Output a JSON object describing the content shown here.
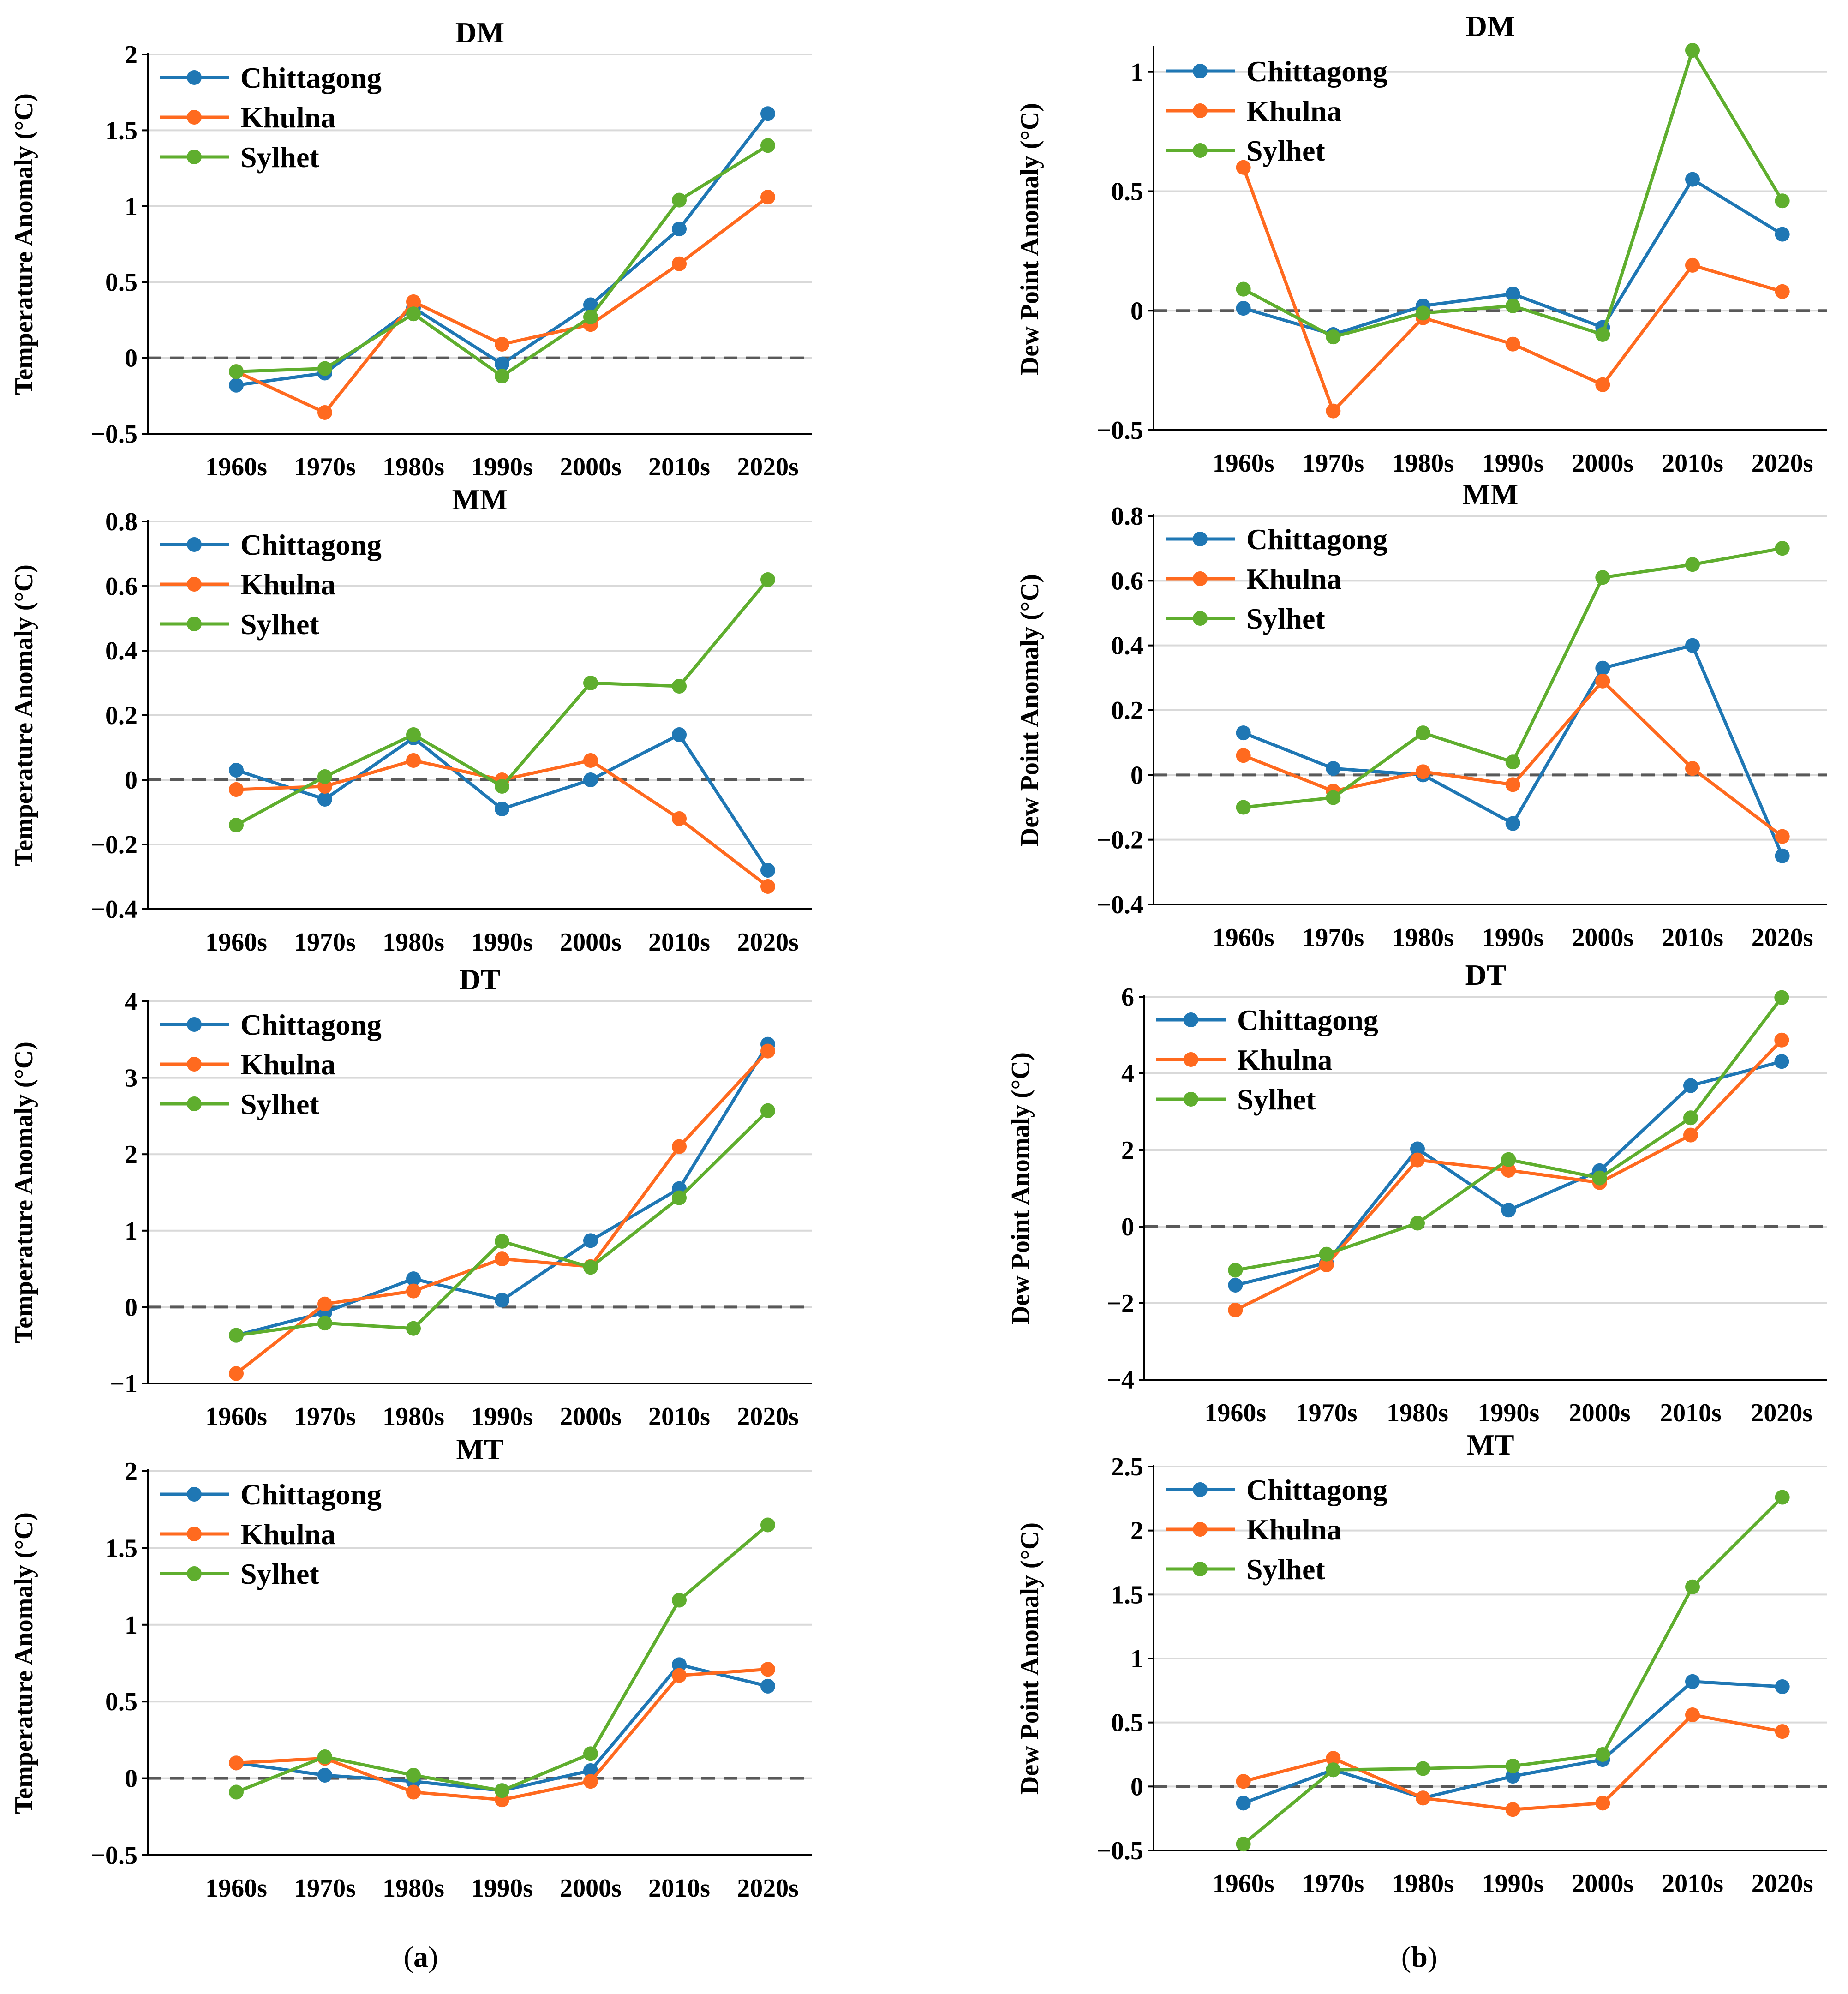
{
  "figure": {
    "panel_labels": [
      {
        "open": "(",
        "letter": "a",
        "close": ")"
      },
      {
        "open": "(",
        "letter": "b",
        "close": ")"
      }
    ]
  },
  "colors": {
    "Chittagong": "#1f77b4",
    "Khulna": "#ff6a1f",
    "Sylhet": "#5fae2e",
    "grid": "#d9d9d9",
    "zero_line": "#595959",
    "axis": "#000000"
  },
  "chart_data": [
    {
      "type": "line",
      "title": "DM",
      "ylabel": "Temperature Anomaly (°C)",
      "categories": [
        "1960s",
        "1970s",
        "1980s",
        "1990s",
        "2000s",
        "2010s",
        "2020s"
      ],
      "ylim": [
        -0.5,
        2
      ],
      "yticks": [
        -0.5,
        0,
        0.5,
        1,
        1.5,
        2
      ],
      "ytick_labels": [
        "−0.5",
        "0",
        "0.5",
        "1",
        "1.5",
        "2"
      ],
      "legend": "top-left",
      "series": [
        {
          "name": "Chittagong",
          "values": [
            -0.18,
            -0.1,
            0.33,
            -0.04,
            0.35,
            0.85,
            1.61
          ]
        },
        {
          "name": "Khulna",
          "values": [
            -0.09,
            -0.36,
            0.37,
            0.09,
            0.22,
            0.62,
            1.06
          ]
        },
        {
          "name": "Sylhet",
          "values": [
            -0.09,
            -0.07,
            0.29,
            -0.12,
            0.27,
            1.04,
            1.4
          ]
        }
      ]
    },
    {
      "type": "line",
      "title": "DM",
      "ylabel": "Dew Point Anomaly (°C)",
      "categories": [
        "1960s",
        "1970s",
        "1980s",
        "1990s",
        "2000s",
        "2010s",
        "2020s"
      ],
      "ylim": [
        -0.5,
        1.1
      ],
      "yticks": [
        -0.5,
        0,
        0.5,
        1
      ],
      "ytick_labels": [
        "−0.5",
        "0",
        "0.5",
        "1"
      ],
      "legend": "top-left",
      "series": [
        {
          "name": "Chittagong",
          "values": [
            0.01,
            -0.1,
            0.02,
            0.07,
            -0.07,
            0.55,
            0.32
          ]
        },
        {
          "name": "Khulna",
          "values": [
            0.6,
            -0.42,
            -0.03,
            -0.14,
            -0.31,
            0.19,
            0.08
          ]
        },
        {
          "name": "Sylhet",
          "values": [
            0.09,
            -0.11,
            -0.01,
            0.02,
            -0.1,
            1.09,
            0.46
          ]
        }
      ]
    },
    {
      "type": "line",
      "title": "MM",
      "ylabel": "Temperature Anomaly (°C)",
      "categories": [
        "1960s",
        "1970s",
        "1980s",
        "1990s",
        "2000s",
        "2010s",
        "2020s"
      ],
      "ylim": [
        -0.4,
        0.8
      ],
      "yticks": [
        -0.4,
        -0.2,
        0,
        0.2,
        0.4,
        0.6,
        0.8
      ],
      "ytick_labels": [
        "−0.4",
        "−0.2",
        "0",
        "0.2",
        "0.4",
        "0.6",
        "0.8"
      ],
      "legend": "top-left",
      "series": [
        {
          "name": "Chittagong",
          "values": [
            0.03,
            -0.06,
            0.13,
            -0.09,
            0.0,
            0.14,
            -0.28
          ]
        },
        {
          "name": "Khulna",
          "values": [
            -0.03,
            -0.02,
            0.06,
            0.0,
            0.06,
            -0.12,
            -0.33
          ]
        },
        {
          "name": "Sylhet",
          "values": [
            -0.14,
            0.01,
            0.14,
            -0.02,
            0.3,
            0.29,
            0.62
          ]
        }
      ]
    },
    {
      "type": "line",
      "title": "MM",
      "ylabel": "Dew Point Anomaly (°C)",
      "categories": [
        "1960s",
        "1970s",
        "1980s",
        "1990s",
        "2000s",
        "2010s",
        "2020s"
      ],
      "ylim": [
        -0.4,
        0.8
      ],
      "yticks": [
        -0.4,
        -0.2,
        0,
        0.2,
        0.4,
        0.6,
        0.8
      ],
      "ytick_labels": [
        "−0.4",
        "−0.2",
        "0",
        "0.2",
        "0.4",
        "0.6",
        "0.8"
      ],
      "legend": "top-left",
      "series": [
        {
          "name": "Chittagong",
          "values": [
            0.13,
            0.02,
            0.0,
            -0.15,
            0.33,
            0.4,
            -0.25
          ]
        },
        {
          "name": "Khulna",
          "values": [
            0.06,
            -0.05,
            0.01,
            -0.03,
            0.29,
            0.02,
            -0.19
          ]
        },
        {
          "name": "Sylhet",
          "values": [
            -0.1,
            -0.07,
            0.13,
            0.04,
            0.61,
            0.65,
            0.7
          ]
        }
      ]
    },
    {
      "type": "line",
      "title": "DT",
      "ylabel": "Temperature Anomaly (°C)",
      "categories": [
        "1960s",
        "1970s",
        "1980s",
        "1990s",
        "2000s",
        "2010s",
        "2020s"
      ],
      "ylim": [
        -1,
        4
      ],
      "yticks": [
        -1,
        0,
        1,
        2,
        3,
        4
      ],
      "ytick_labels": [
        "−1",
        "0",
        "1",
        "2",
        "3",
        "4"
      ],
      "legend": "top-left",
      "series": [
        {
          "name": "Chittagong",
          "values": [
            -0.37,
            -0.07,
            0.37,
            0.09,
            0.87,
            1.55,
            3.44
          ]
        },
        {
          "name": "Khulna",
          "values": [
            -0.87,
            0.04,
            0.21,
            0.63,
            0.53,
            2.1,
            3.35
          ]
        },
        {
          "name": "Sylhet",
          "values": [
            -0.37,
            -0.21,
            -0.28,
            0.86,
            0.52,
            1.43,
            2.57
          ]
        }
      ]
    },
    {
      "type": "line",
      "title": "DT",
      "ylabel": "Dew Point Anomaly (°C)",
      "categories": [
        "1960s",
        "1970s",
        "1980s",
        "1990s",
        "2000s",
        "2010s",
        "2020s"
      ],
      "ylim": [
        -4,
        6
      ],
      "yticks": [
        -4,
        -2,
        0,
        2,
        4,
        6
      ],
      "ytick_labels": [
        "−4",
        "−2",
        "0",
        "2",
        "4",
        "6"
      ],
      "legend": "top-left",
      "series": [
        {
          "name": "Chittagong",
          "values": [
            -1.53,
            -0.95,
            2.03,
            0.43,
            1.46,
            3.68,
            4.31
          ]
        },
        {
          "name": "Khulna",
          "values": [
            -2.18,
            -1.0,
            1.74,
            1.47,
            1.15,
            2.39,
            4.87
          ]
        },
        {
          "name": "Sylhet",
          "values": [
            -1.14,
            -0.72,
            0.09,
            1.75,
            1.27,
            2.84,
            5.98
          ]
        }
      ]
    },
    {
      "type": "line",
      "title": "MT",
      "ylabel": "Temperature Anomaly (°C)",
      "categories": [
        "1960s",
        "1970s",
        "1980s",
        "1990s",
        "2000s",
        "2010s",
        "2020s"
      ],
      "ylim": [
        -0.5,
        2
      ],
      "yticks": [
        -0.5,
        0,
        0.5,
        1,
        1.5,
        2
      ],
      "ytick_labels": [
        "−0.5",
        "0",
        "0.5",
        "1",
        "1.5",
        "2"
      ],
      "legend": "top-left",
      "series": [
        {
          "name": "Chittagong",
          "values": [
            0.1,
            0.02,
            -0.02,
            -0.08,
            0.05,
            0.74,
            0.6
          ]
        },
        {
          "name": "Khulna",
          "values": [
            0.1,
            0.13,
            -0.09,
            -0.14,
            -0.02,
            0.67,
            0.71
          ]
        },
        {
          "name": "Sylhet",
          "values": [
            -0.09,
            0.14,
            0.02,
            -0.08,
            0.16,
            1.16,
            1.65
          ]
        }
      ]
    },
    {
      "type": "line",
      "title": "MT",
      "ylabel": "Dew Point Anomaly (°C)",
      "categories": [
        "1960s",
        "1970s",
        "1980s",
        "1990s",
        "2000s",
        "2010s",
        "2020s"
      ],
      "ylim": [
        -0.5,
        2.5
      ],
      "yticks": [
        -0.5,
        0,
        0.5,
        1,
        1.5,
        2,
        2.5
      ],
      "ytick_labels": [
        "−0.5",
        "0",
        "0.5",
        "1",
        "1.5",
        "2",
        "2.5"
      ],
      "legend": "top-left",
      "series": [
        {
          "name": "Chittagong",
          "values": [
            -0.13,
            0.13,
            -0.09,
            0.08,
            0.21,
            0.82,
            0.78
          ]
        },
        {
          "name": "Khulna",
          "values": [
            0.04,
            0.22,
            -0.09,
            -0.18,
            -0.13,
            0.56,
            0.43
          ]
        },
        {
          "name": "Sylhet",
          "values": [
            -0.45,
            0.13,
            0.14,
            0.16,
            0.25,
            1.56,
            2.26
          ]
        }
      ]
    }
  ]
}
